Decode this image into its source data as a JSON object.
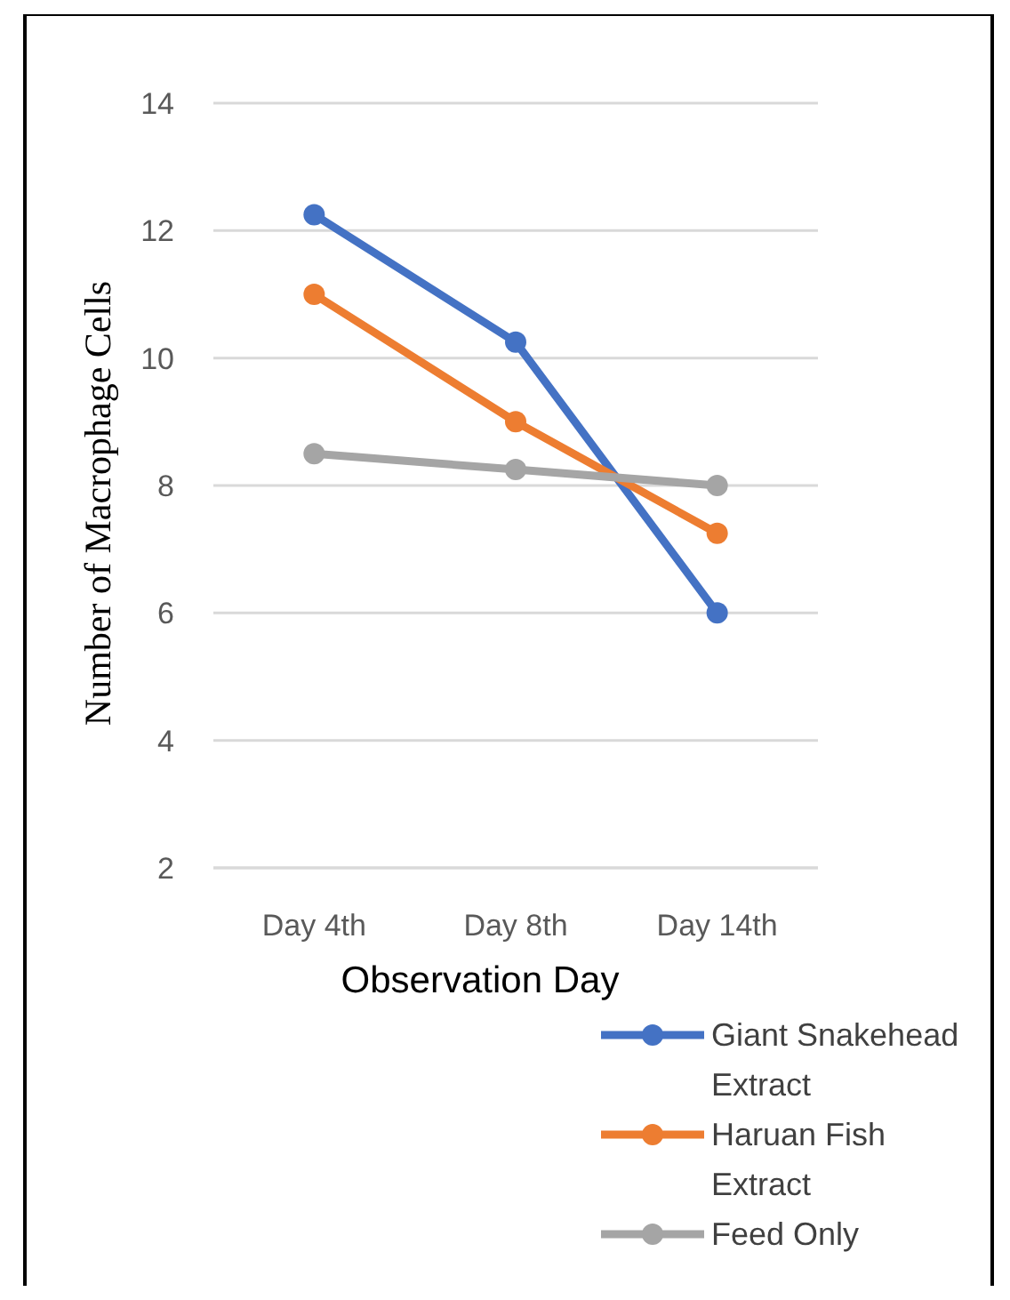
{
  "chart_data": {
    "type": "line",
    "xlabel": "Observation Day",
    "ylabel": "Number of Macrophage Cells",
    "categories": [
      "Day 4th",
      "Day 8th",
      "Day 14th"
    ],
    "series": [
      {
        "name": "Giant Snakehead Extract",
        "color": "#4472c4",
        "values": [
          12.25,
          10.25,
          6
        ]
      },
      {
        "name": "Haruan Fish Extract",
        "color": "#ed7d31",
        "values": [
          11,
          9,
          7.25
        ]
      },
      {
        "name": "Feed Only",
        "color": "#a5a5a5",
        "values": [
          8.5,
          8.25,
          8
        ]
      }
    ],
    "ylim": [
      2,
      14
    ],
    "yticks": [
      2,
      4,
      6,
      8,
      10,
      12,
      14
    ],
    "grid": "y",
    "legend": "bottom right",
    "marker": "circle",
    "line_style": "solid"
  }
}
